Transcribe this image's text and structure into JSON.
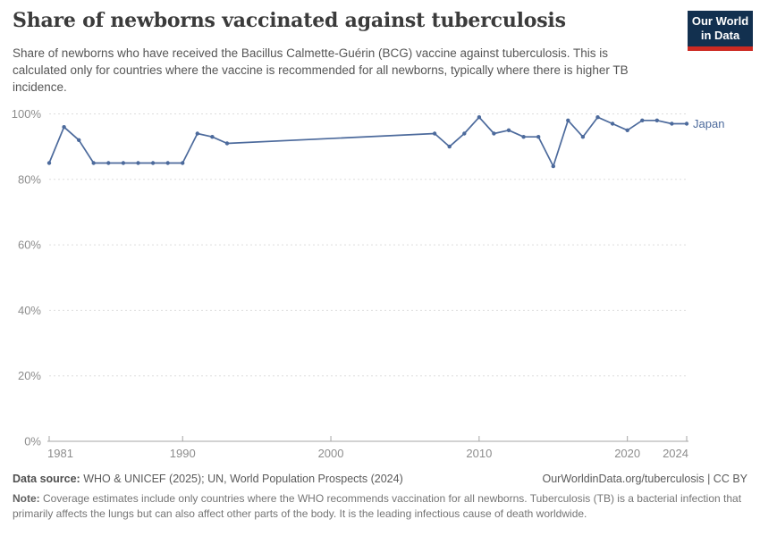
{
  "header": {
    "title": "Share of newborns vaccinated against tuberculosis",
    "subtitle": "Share of newborns who have received the Bacillus Calmette-Guérin (BCG) vaccine against tuberculosis. This is calculated only for countries where the vaccine is recommended for all newborns, typically where there is higher TB incidence.",
    "logo": {
      "line1": "Our World",
      "line2": "in Data"
    }
  },
  "chart_data": {
    "type": "line",
    "title": "Share of newborns vaccinated against tuberculosis",
    "xlabel": "",
    "ylabel": "",
    "xlim": [
      1981,
      2024
    ],
    "ylim": [
      0,
      100
    ],
    "x_ticks": [
      1981,
      1990,
      2000,
      2010,
      2020,
      2024
    ],
    "y_ticks": [
      0,
      20,
      40,
      60,
      80,
      100
    ],
    "y_tick_suffix": "%",
    "grid": "horizontal-dashed",
    "legend_position": "end-of-line",
    "series": [
      {
        "name": "Japan",
        "color": "#4c6a9c",
        "points": [
          [
            1981,
            85
          ],
          [
            1982,
            96
          ],
          [
            1983,
            92
          ],
          [
            1984,
            85
          ],
          [
            1985,
            85
          ],
          [
            1986,
            85
          ],
          [
            1987,
            85
          ],
          [
            1988,
            85
          ],
          [
            1989,
            85
          ],
          [
            1990,
            85
          ],
          [
            1991,
            94
          ],
          [
            1992,
            93
          ],
          [
            1993,
            91
          ],
          [
            2007,
            94
          ],
          [
            2008,
            90
          ],
          [
            2009,
            94
          ],
          [
            2010,
            99
          ],
          [
            2011,
            94
          ],
          [
            2012,
            95
          ],
          [
            2013,
            93
          ],
          [
            2014,
            93
          ],
          [
            2015,
            84
          ],
          [
            2016,
            98
          ],
          [
            2017,
            93
          ],
          [
            2018,
            99
          ],
          [
            2019,
            97
          ],
          [
            2020,
            95
          ],
          [
            2021,
            98
          ],
          [
            2022,
            98
          ],
          [
            2023,
            97
          ],
          [
            2024,
            97
          ]
        ]
      }
    ]
  },
  "footer": {
    "source_label": "Data source:",
    "source_text": " WHO & UNICEF (2025); UN, World Population Prospects (2024)",
    "link_text": "OurWorldinData.org/tuberculosis | CC BY",
    "note_label": "Note:",
    "note_text": " Coverage estimates include only countries where the WHO recommends vaccination for all newborns. Tuberculosis (TB) is a bacterial infection that primarily affects the lungs but can also affect other parts of the body. It is the leading infectious cause of death worldwide."
  },
  "colors": {
    "accent": "#4c6a9c",
    "logo_bg": "#12304f",
    "logo_red": "#cc2a22",
    "title": "#3b3b3b",
    "subtitle": "#555555",
    "tick_label": "#8d8d8d",
    "gridline": "#dddddd",
    "axis_line": "#a5a5a5"
  }
}
